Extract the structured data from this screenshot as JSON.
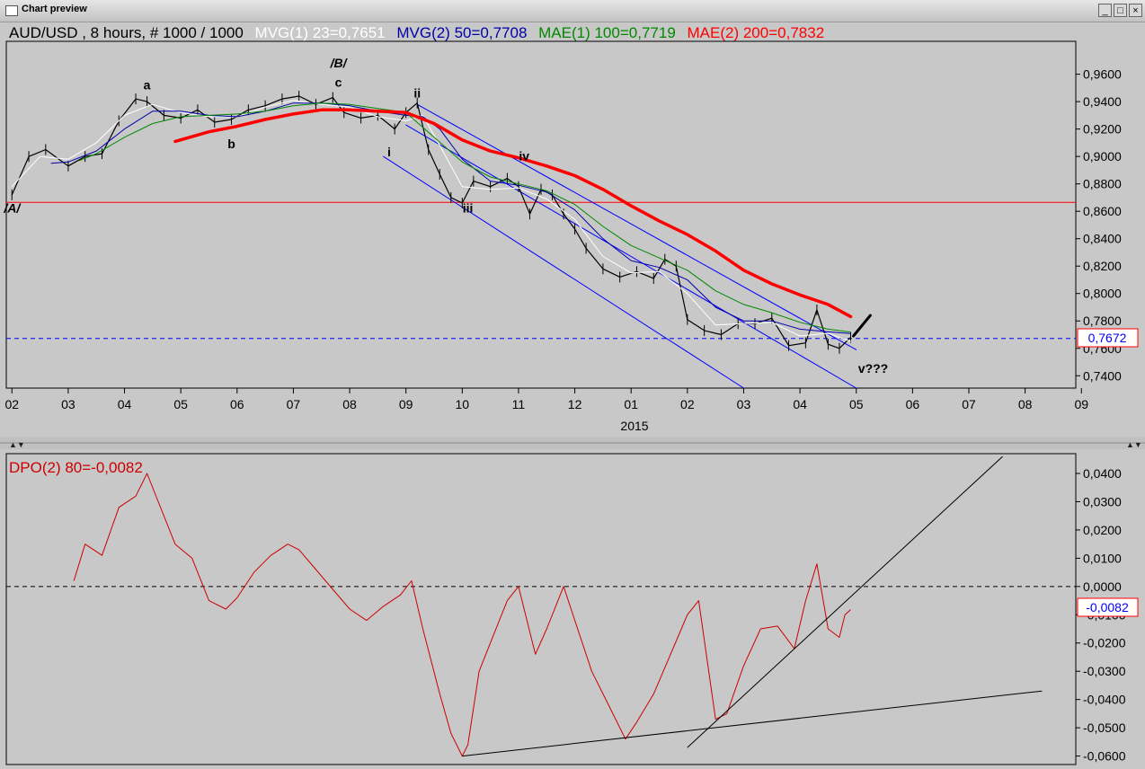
{
  "window": {
    "title": "Chart preview",
    "minimize_glyph": "_",
    "maximize_glyph": "□",
    "close_glyph": "×"
  },
  "price_panel": {
    "header": {
      "instrument": "AUD/USD , 8 hours, # 1000 / 1000",
      "mvg1": "MVG(1) 23=0,7651",
      "mvg2": "MVG(2) 50=0,7708",
      "mae1": "MAE(1) 100=0,7719",
      "mae2": "MAE(2) 200=0,7832"
    },
    "colors": {
      "mvg1": "#ffffff",
      "mvg2": "#0000aa",
      "mae1": "#008800",
      "mae2": "#ff0000",
      "price": "#000000",
      "channel": "#0000ff",
      "hline": "#ff0000"
    },
    "current_price_label": "0,7672",
    "year_label": "2015",
    "wave_labels": [
      {
        "text": "a",
        "month": 4.4,
        "value": 0.949
      },
      {
        "text": "b",
        "month": 5.9,
        "value": 0.906
      },
      {
        "text": "/B/",
        "month": 7.8,
        "value": 0.965
      },
      {
        "text": "c",
        "month": 7.8,
        "value": 0.951
      },
      {
        "text": "ii",
        "month": 9.2,
        "value": 0.943
      },
      {
        "text": "i",
        "month": 8.7,
        "value": 0.9
      },
      {
        "text": "iv",
        "month": 11.1,
        "value": 0.897
      },
      {
        "text": "iii",
        "month": 10.1,
        "value": 0.859
      },
      {
        "text": "/A/",
        "month": 2.0,
        "value": 0.859
      },
      {
        "text": "v???",
        "month": 17.3,
        "value": 0.742
      }
    ]
  },
  "dpo_panel": {
    "header": "DPO(2) 80=-0,0082",
    "current_label": "-0,0082",
    "color": "#cc0000"
  },
  "chart_data": [
    {
      "type": "line",
      "title": "AUD/USD , 8 hours, # 1000 / 1000",
      "x_tick_labels": [
        "02",
        "03",
        "04",
        "05",
        "06",
        "07",
        "08",
        "09",
        "10",
        "11",
        "12",
        "01",
        "02",
        "03",
        "04",
        "05",
        "06",
        "07",
        "08",
        "09"
      ],
      "y_tick_labels": [
        "0,9600",
        "0,9400",
        "0,9200",
        "0,9000",
        "0,8800",
        "0,8600",
        "0,8400",
        "0,8200",
        "0,8000",
        "0,7800",
        "0,7600",
        "0,7400"
      ],
      "xlim": [
        1.9,
        20.9
      ],
      "ylim": [
        0.731,
        0.984
      ],
      "grid": false,
      "horizontal_lines": [
        {
          "value": 0.8665,
          "style": "solid",
          "color": "#ff0000"
        },
        {
          "value": 0.7672,
          "style": "dashed",
          "color": "#0000ff"
        }
      ],
      "series": [
        {
          "name": "AUD/USD",
          "x": [
            2.0,
            2.3,
            2.6,
            3.0,
            3.3,
            3.6,
            3.9,
            4.2,
            4.4,
            4.7,
            5.0,
            5.3,
            5.6,
            5.9,
            6.2,
            6.5,
            6.8,
            7.1,
            7.4,
            7.7,
            7.9,
            8.2,
            8.5,
            8.8,
            9.0,
            9.2,
            9.4,
            9.6,
            9.8,
            10.0,
            10.2,
            10.5,
            10.8,
            11.0,
            11.2,
            11.4,
            11.6,
            11.8,
            12.0,
            12.2,
            12.5,
            12.8,
            13.1,
            13.4,
            13.6,
            13.8,
            14.0,
            14.3,
            14.6,
            14.9,
            15.2,
            15.5,
            15.8,
            16.1,
            16.3,
            16.5,
            16.7,
            16.9
          ],
          "y": [
            0.872,
            0.9,
            0.905,
            0.893,
            0.9,
            0.902,
            0.926,
            0.942,
            0.94,
            0.93,
            0.928,
            0.934,
            0.925,
            0.927,
            0.934,
            0.937,
            0.942,
            0.944,
            0.938,
            0.943,
            0.932,
            0.928,
            0.93,
            0.92,
            0.932,
            0.939,
            0.905,
            0.887,
            0.87,
            0.866,
            0.882,
            0.878,
            0.884,
            0.878,
            0.858,
            0.876,
            0.872,
            0.858,
            0.847,
            0.833,
            0.818,
            0.812,
            0.816,
            0.811,
            0.825,
            0.82,
            0.781,
            0.773,
            0.77,
            0.778,
            0.778,
            0.782,
            0.762,
            0.764,
            0.788,
            0.763,
            0.76,
            0.768
          ]
        },
        {
          "name": "MVG(1) 23",
          "x": [
            2.0,
            2.5,
            3.0,
            3.5,
            4.0,
            4.5,
            5.0,
            5.5,
            6.0,
            6.5,
            7.0,
            7.5,
            8.0,
            8.5,
            9.0,
            9.3,
            9.6,
            10.0,
            10.5,
            11.0,
            11.5,
            12.0,
            12.5,
            13.0,
            13.5,
            14.0,
            14.5,
            15.0,
            15.5,
            16.0,
            16.5,
            16.9
          ],
          "y": [
            0.878,
            0.9,
            0.898,
            0.91,
            0.93,
            0.938,
            0.932,
            0.929,
            0.929,
            0.936,
            0.941,
            0.938,
            0.936,
            0.929,
            0.926,
            0.93,
            0.908,
            0.878,
            0.876,
            0.877,
            0.869,
            0.854,
            0.827,
            0.815,
            0.816,
            0.8,
            0.777,
            0.778,
            0.779,
            0.769,
            0.771,
            0.7651
          ]
        },
        {
          "name": "MVG(2) 50",
          "x": [
            2.7,
            3.0,
            3.5,
            4.0,
            4.5,
            5.0,
            5.5,
            6.0,
            6.5,
            7.0,
            7.5,
            8.0,
            8.5,
            9.0,
            9.3,
            9.6,
            10.0,
            10.5,
            11.0,
            11.5,
            12.0,
            12.5,
            13.0,
            13.5,
            14.0,
            14.5,
            15.0,
            15.5,
            16.0,
            16.5,
            16.9
          ],
          "y": [
            0.895,
            0.896,
            0.904,
            0.92,
            0.933,
            0.933,
            0.93,
            0.929,
            0.933,
            0.939,
            0.939,
            0.937,
            0.933,
            0.93,
            0.929,
            0.92,
            0.898,
            0.882,
            0.879,
            0.874,
            0.861,
            0.84,
            0.824,
            0.819,
            0.81,
            0.79,
            0.78,
            0.78,
            0.774,
            0.772,
            0.7708
          ]
        },
        {
          "name": "MAE(1) 100",
          "x": [
            3.2,
            3.5,
            4.0,
            4.5,
            5.0,
            5.5,
            6.0,
            6.5,
            7.0,
            7.5,
            8.0,
            8.5,
            9.0,
            9.5,
            10.0,
            10.5,
            11.0,
            11.5,
            12.0,
            12.5,
            13.0,
            13.5,
            14.0,
            14.5,
            15.0,
            15.5,
            16.0,
            16.5,
            16.9
          ],
          "y": [
            0.897,
            0.902,
            0.914,
            0.924,
            0.929,
            0.93,
            0.931,
            0.933,
            0.937,
            0.939,
            0.938,
            0.935,
            0.932,
            0.914,
            0.896,
            0.885,
            0.88,
            0.875,
            0.865,
            0.849,
            0.835,
            0.826,
            0.817,
            0.802,
            0.792,
            0.786,
            0.779,
            0.774,
            0.7719
          ]
        },
        {
          "name": "MAE(2) 200",
          "x": [
            4.9,
            5.5,
            6.0,
            6.5,
            7.0,
            7.5,
            8.0,
            8.5,
            9.0,
            9.5,
            10.0,
            10.5,
            11.0,
            11.5,
            12.0,
            12.5,
            13.0,
            13.5,
            14.0,
            14.5,
            15.0,
            15.5,
            16.0,
            16.5,
            16.9
          ],
          "y": [
            0.911,
            0.918,
            0.922,
            0.927,
            0.931,
            0.934,
            0.934,
            0.933,
            0.932,
            0.924,
            0.912,
            0.904,
            0.899,
            0.893,
            0.886,
            0.876,
            0.864,
            0.853,
            0.843,
            0.831,
            0.817,
            0.807,
            0.799,
            0.792,
            0.7832
          ]
        },
        {
          "name": "Channel upper",
          "x": [
            9.2,
            17.0
          ],
          "y": [
            0.938,
            0.759
          ]
        },
        {
          "name": "Channel lower",
          "x": [
            8.6,
            15.0
          ],
          "y": [
            0.9,
            0.731
          ]
        },
        {
          "name": "Channel middle",
          "x": [
            9.0,
            17.0
          ],
          "y": [
            0.923,
            0.731
          ]
        },
        {
          "name": "Projection",
          "x": [
            16.95,
            17.25
          ],
          "y": [
            0.769,
            0.784
          ]
        }
      ]
    },
    {
      "type": "line",
      "title": "DPO(2) 80=-0,0082",
      "y_tick_labels": [
        "0,0400",
        "0,0300",
        "0,0200",
        "0,0100",
        "0,0000",
        "-0,0100",
        "-0,0200",
        "-0,0300",
        "-0,0400",
        "-0,0500",
        "-0,0600"
      ],
      "xlim": [
        1.9,
        20.9
      ],
      "ylim": [
        -0.063,
        0.047
      ],
      "grid": false,
      "horizontal_lines": [
        {
          "value": 0.0,
          "style": "dashed",
          "color": "#000000"
        }
      ],
      "series": [
        {
          "name": "DPO(2) 80",
          "x": [
            3.1,
            3.3,
            3.6,
            3.9,
            4.2,
            4.4,
            4.6,
            4.9,
            5.2,
            5.5,
            5.8,
            6.0,
            6.3,
            6.6,
            6.9,
            7.1,
            7.4,
            7.7,
            8.0,
            8.3,
            8.6,
            8.9,
            9.1,
            9.3,
            9.6,
            9.8,
            10.0,
            10.1,
            10.3,
            10.5,
            10.8,
            11.0,
            11.3,
            11.5,
            11.8,
            12.0,
            12.3,
            12.6,
            12.9,
            13.1,
            13.4,
            13.7,
            14.0,
            14.2,
            14.5,
            14.7,
            15.0,
            15.3,
            15.6,
            15.9,
            16.1,
            16.3,
            16.5,
            16.7,
            16.8,
            16.9
          ],
          "y": [
            0.002,
            0.015,
            0.011,
            0.028,
            0.032,
            0.04,
            0.03,
            0.015,
            0.01,
            -0.005,
            -0.008,
            -0.004,
            0.005,
            0.011,
            0.015,
            0.013,
            0.006,
            -0.001,
            -0.008,
            -0.012,
            -0.007,
            -0.003,
            0.002,
            -0.015,
            -0.038,
            -0.052,
            -0.06,
            -0.056,
            -0.03,
            -0.02,
            -0.005,
            0.0,
            -0.024,
            -0.015,
            0.0,
            -0.012,
            -0.03,
            -0.042,
            -0.054,
            -0.048,
            -0.038,
            -0.024,
            -0.01,
            -0.005,
            -0.047,
            -0.045,
            -0.028,
            -0.015,
            -0.014,
            -0.022,
            -0.005,
            0.008,
            -0.015,
            -0.018,
            -0.01,
            -0.0082
          ]
        },
        {
          "name": "Trendline 1",
          "x": [
            10.0,
            20.3
          ],
          "y": [
            -0.06,
            -0.037
          ]
        },
        {
          "name": "Trendline 2",
          "x": [
            14.0,
            19.6
          ],
          "y": [
            -0.057,
            0.046
          ]
        }
      ]
    }
  ]
}
